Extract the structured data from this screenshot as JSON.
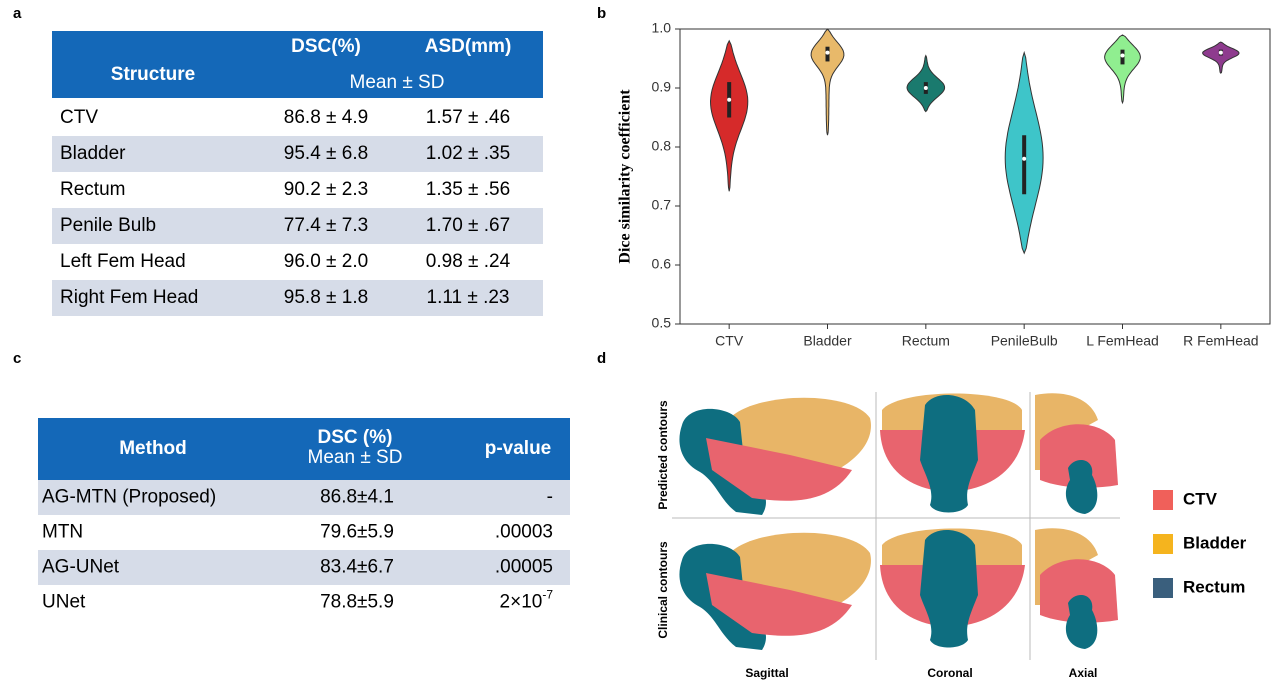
{
  "panel_labels": [
    "a",
    "b",
    "c",
    "d"
  ],
  "table_a": {
    "header": {
      "structure": "Structure",
      "dsc": "DSC(%)",
      "asd": "ASD(mm)",
      "stat": "Mean ± SD"
    },
    "rows": [
      [
        "CTV",
        "86.8 ± 4.9",
        "1.57 ± .46"
      ],
      [
        "Bladder",
        "95.4 ± 6.8",
        "1.02 ± .35"
      ],
      [
        "Rectum",
        "90.2 ± 2.3",
        "1.35 ± .56"
      ],
      [
        "Penile Bulb",
        "77.4 ± 7.3",
        "1.70 ± .67"
      ],
      [
        "Left Fem Head",
        "96.0 ± 2.0",
        "0.98 ± .24"
      ],
      [
        "Right Fem Head",
        "95.8 ± 1.8",
        "1.11 ± .23"
      ]
    ]
  },
  "chart_data": {
    "type": "violin",
    "ylabel": "Dice similarity coefficient",
    "categories": [
      "CTV",
      "Bladder",
      "Rectum",
      "PenileBulb",
      "L FemHead",
      "R FemHead"
    ],
    "colors": [
      "#d62a2a",
      "#e8b96a",
      "#1a7a6e",
      "#3ec5c9",
      "#90ee90",
      "#8e3b8e"
    ],
    "min": [
      0.725,
      0.82,
      0.86,
      0.62,
      0.875,
      0.925
    ],
    "q1": [
      0.85,
      0.945,
      0.89,
      0.72,
      0.94,
      0.955
    ],
    "median": [
      0.88,
      0.96,
      0.9,
      0.78,
      0.955,
      0.96
    ],
    "q3": [
      0.91,
      0.97,
      0.91,
      0.82,
      0.965,
      0.965
    ],
    "max": [
      0.98,
      1.0,
      0.955,
      0.96,
      0.99,
      0.978
    ],
    "ylim": [
      0.5,
      1.0
    ],
    "yticks": [
      0.5,
      0.6,
      0.7,
      0.8,
      0.9,
      {
        "value": 1.0,
        "label": "1.0"
      }
    ]
  },
  "table_c": {
    "header": {
      "method": "Method",
      "dsc": "DSC (%)",
      "stat": "Mean ± SD",
      "pvalue": "p-value"
    },
    "rows": [
      [
        "AG-MTN (Proposed)",
        "86.8±4.1",
        "-"
      ],
      [
        "MTN",
        "79.6±5.9",
        ".00003"
      ],
      [
        "AG-UNet",
        "83.4±6.7",
        ".00005"
      ],
      [
        "UNet",
        "78.8±5.9",
        {
          "base": "2×10",
          "exponent": "-7"
        }
      ]
    ]
  },
  "figure_d": {
    "rows": [
      "Predicted contours",
      "Clinical contours"
    ],
    "columns": [
      "Sagittal",
      "Coronal",
      "Axial"
    ],
    "legend": [
      {
        "name": "CTV",
        "color": "#f0605a"
      },
      {
        "name": "Bladder",
        "color": "#f5b41e"
      },
      {
        "name": "Rectum",
        "color": "#3a5f7d"
      }
    ]
  }
}
